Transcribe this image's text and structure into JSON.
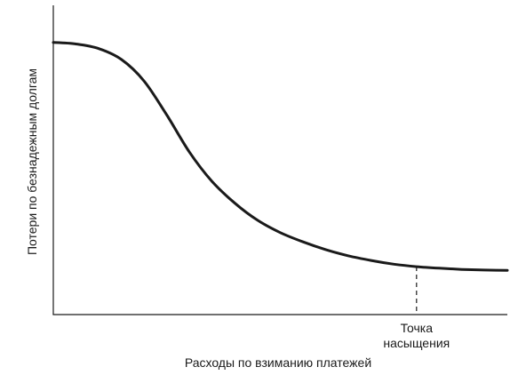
{
  "chart_data": {
    "type": "line",
    "title": "",
    "xlabel": "Расходы по взиманию платежей",
    "ylabel": "Потери по безнадежным долгам",
    "xlim": [
      0,
      100
    ],
    "ylim": [
      0,
      100
    ],
    "x_ticks_shown": false,
    "y_ticks_shown": false,
    "grid": false,
    "series": [
      {
        "x": [
          0,
          5,
          10,
          15,
          20,
          25,
          30,
          35,
          40,
          45,
          50,
          55,
          60,
          65,
          70,
          75,
          80,
          85,
          90,
          95,
          100
        ],
        "y": [
          88,
          87.5,
          86,
          82.5,
          75.5,
          64.5,
          52.5,
          43,
          36,
          30.5,
          26.5,
          23.5,
          21,
          19,
          17.5,
          16.3,
          15.5,
          15,
          14.6,
          14.4,
          14.3
        ]
      }
    ],
    "annotations": [
      {
        "label_lines": [
          "Точка",
          "насыщения"
        ],
        "x": 80,
        "style": "dashed-vertical-to-curve"
      }
    ]
  }
}
